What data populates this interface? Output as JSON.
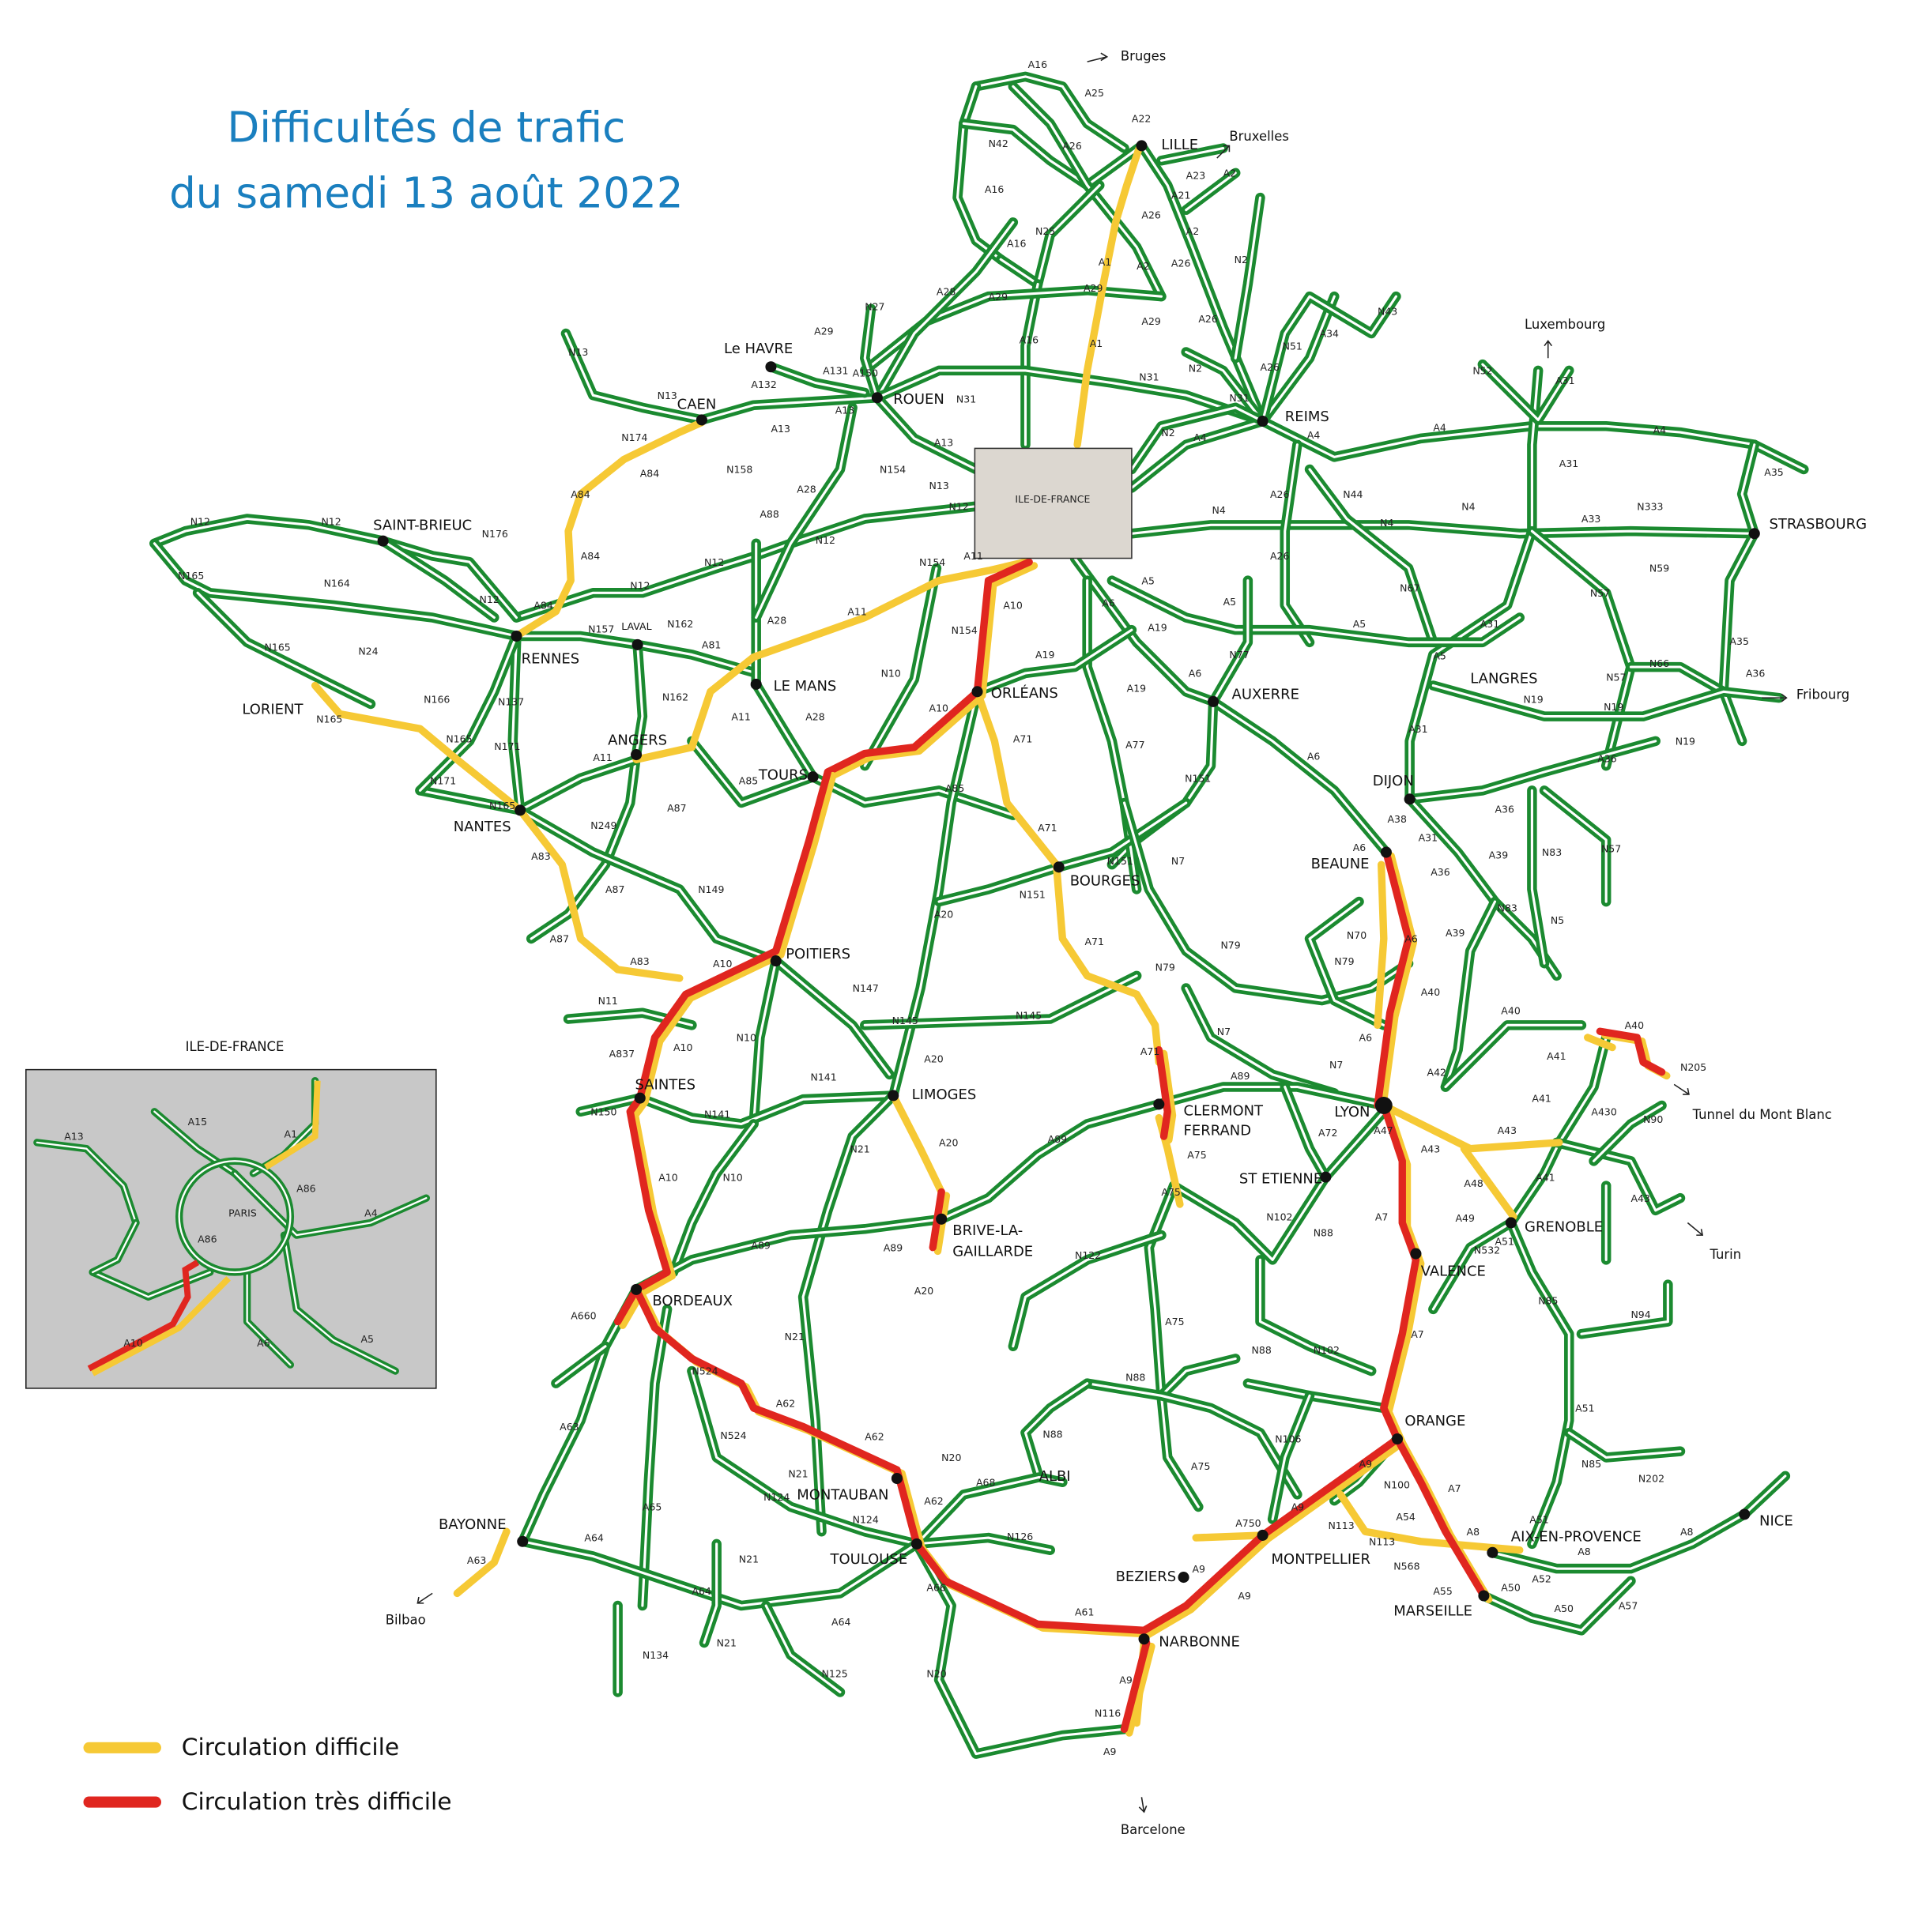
{
  "title": [
    "Difficultés de trafic",
    "du samedi 13 août 2022"
  ],
  "region_box": "ILE-DE-FRANCE",
  "places": [
    "LILLE",
    "REIMS",
    "ROUEN",
    "Le HAVRE",
    "CAEN",
    "SAINT-BRIEUC",
    "RENNES",
    "LAVAL",
    "LE MANS",
    "ANGERS",
    "TOURS",
    "ORLÉANS",
    "NANTES",
    "LORIENT",
    "BOURGES",
    "AUXERRE",
    "DIJON",
    "BEAUNE",
    "LANGRES",
    "STRASBOURG",
    "POITIERS",
    "SAINTES",
    "LIMOGES",
    "CLERMONT",
    "FERRAND",
    "LYON",
    "ST ETIENNE",
    "GRENOBLE",
    "VALENCE",
    "BRIVE-LA-",
    "GAILLARDE",
    "BORDEAUX",
    "ORANGE",
    "MONTAUBAN",
    "ALBI",
    "TOULOUSE",
    "BAYONNE",
    "MONTPELLIER",
    "BEZIERS",
    "NARBONNE",
    "AIX-EN-PROVENCE",
    "MARSEILLE",
    "NICE"
  ],
  "directions": [
    "Bruges",
    "Bruxelles",
    "Luxembourg",
    "Fribourg",
    "Tunnel du Mont Blanc",
    "Turin",
    "Barcelone",
    "Bilbao"
  ],
  "roads": [
    "A16",
    "A25",
    "A22",
    "N42",
    "A26",
    "A23",
    "A2",
    "A21",
    "A16",
    "A26",
    "A2",
    "N25",
    "A16",
    "A1",
    "A2",
    "A26",
    "N2",
    "A28",
    "A29",
    "A29",
    "A16",
    "A1",
    "A29",
    "A26",
    "A26",
    "N51",
    "A34",
    "N43",
    "N27",
    "A29",
    "A150",
    "A131",
    "A132",
    "A13",
    "N31",
    "N31",
    "N2",
    "N31",
    "N2",
    "A4",
    "A4",
    "A4",
    "A4",
    "A35",
    "A31",
    "N52",
    "A31",
    "N13",
    "N13",
    "N174",
    "A84",
    "A84",
    "A84",
    "A84",
    "A13",
    "N158",
    "A88",
    "A28",
    "N154",
    "A13",
    "N13",
    "N12",
    "N12",
    "N12",
    "N176",
    "N165",
    "N164",
    "N12",
    "N12",
    "N12",
    "N12",
    "A11",
    "N154",
    "A10",
    "N154",
    "A11",
    "N157",
    "N162",
    "A81",
    "A28",
    "N165",
    "N24",
    "N166",
    "N137",
    "N165",
    "N165",
    "N171",
    "N171",
    "N165",
    "A11",
    "N162",
    "A11",
    "A28",
    "N10",
    "A10",
    "A19",
    "A6",
    "A5",
    "A19",
    "A5",
    "A6",
    "A19",
    "N77",
    "A26",
    "A26",
    "N4",
    "N4",
    "N4",
    "A33",
    "N333",
    "N59",
    "N44",
    "N67",
    "A5",
    "A31",
    "A5",
    "N57",
    "A35",
    "N66",
    "A36",
    "N57",
    "N19",
    "N19",
    "N19",
    "A36",
    "A31",
    "A85",
    "A85",
    "A87",
    "A71",
    "A77",
    "N151",
    "A6",
    "A36",
    "A38",
    "A31",
    "A6",
    "A39",
    "N83",
    "N57",
    "A36",
    "A6",
    "A71",
    "N151",
    "N151",
    "N7",
    "A83",
    "N249",
    "A87",
    "N149",
    "A20",
    "N83",
    "N5",
    "N70",
    "N79",
    "A39",
    "A71",
    "N79",
    "N79",
    "A40",
    "A87",
    "A83",
    "A10",
    "N147",
    "N145",
    "N145",
    "N11",
    "A6",
    "A40",
    "A41",
    "A40",
    "N205",
    "A837",
    "A10",
    "N10",
    "N7",
    "N7",
    "A89",
    "A71",
    "A20",
    "N141",
    "N150",
    "N141",
    "A42",
    "A430",
    "N90",
    "A43",
    "A43",
    "A41",
    "A47",
    "A72",
    "A75",
    "A89",
    "A20",
    "N21",
    "N10",
    "A10",
    "A43",
    "A48",
    "A41",
    "A49",
    "A51",
    "N532",
    "A7",
    "A75",
    "N102",
    "N88",
    "N122",
    "A89",
    "A89",
    "A20",
    "A660",
    "N85",
    "N94",
    "A7",
    "A75",
    "N88",
    "N102",
    "N21",
    "N524",
    "N88",
    "A62",
    "A63",
    "N524",
    "A62",
    "N20",
    "N88",
    "N106",
    "A51",
    "A75",
    "N85",
    "N202",
    "A9",
    "N100",
    "A7",
    "A68",
    "A62",
    "N21",
    "A65",
    "N124",
    "N124",
    "N126",
    "A750",
    "A9",
    "N113",
    "A54",
    "A51",
    "A8",
    "A8",
    "A8",
    "A63",
    "A64",
    "N113",
    "N568",
    "A55",
    "A52",
    "A50",
    "A50",
    "A57",
    "N21",
    "A64",
    "A66",
    "A9",
    "A9",
    "A61",
    "A64",
    "N21",
    "N125",
    "N134",
    "N20",
    "A9",
    "N116",
    "A9"
  ],
  "inset": {
    "title": "ILE-DE-FRANCE",
    "labels": [
      "A13",
      "A15",
      "A1",
      "A86",
      "PARIS",
      "A4",
      "A86",
      "A6",
      "A5",
      "A10"
    ]
  },
  "legend": [
    "Circulation difficile",
    "Circulation très difficile"
  ]
}
